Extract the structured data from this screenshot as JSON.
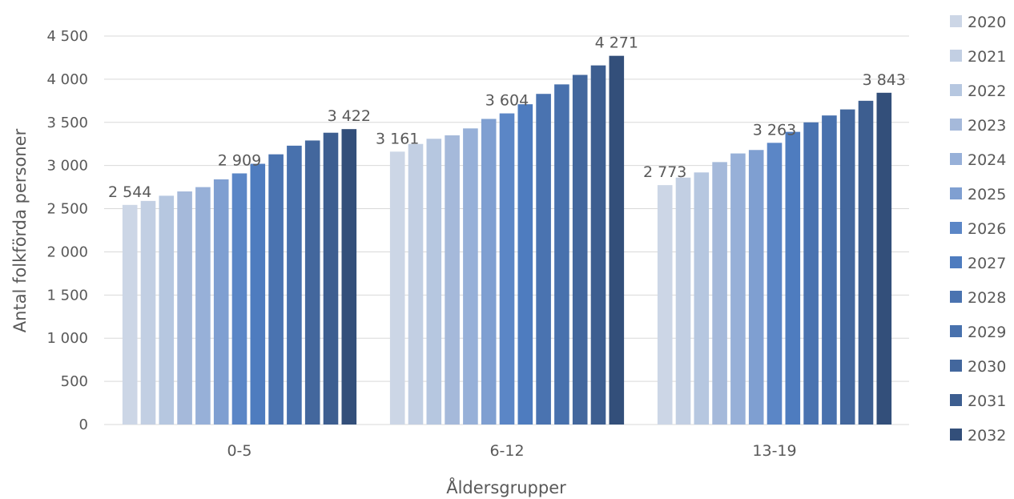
{
  "chart_data": {
    "type": "bar",
    "title": "",
    "xlabel": "Åldersgrupper",
    "ylabel": "Antal folkförda personer",
    "ylim": [
      0,
      4500
    ],
    "y_tick_step": 500,
    "y_tick_labels": [
      "0",
      "500",
      "1 000",
      "1 500",
      "2 000",
      "2 500",
      "3 000",
      "3 500",
      "4 000",
      "4 500"
    ],
    "grid": true,
    "legend_position": "right",
    "categories": [
      "0-5",
      "6-12",
      "13-19"
    ],
    "series": [
      {
        "name": "2020",
        "color": "#ccd6e6",
        "values": [
          2544,
          3161,
          2773
        ]
      },
      {
        "name": "2021",
        "color": "#c2cfe3",
        "values": [
          2590,
          3250,
          2860
        ]
      },
      {
        "name": "2022",
        "color": "#b6c7e0",
        "values": [
          2650,
          3310,
          2920
        ]
      },
      {
        "name": "2023",
        "color": "#a5b9da",
        "values": [
          2700,
          3350,
          3040
        ]
      },
      {
        "name": "2024",
        "color": "#97b0d8",
        "values": [
          2750,
          3430,
          3140
        ]
      },
      {
        "name": "2025",
        "color": "#7f9fd1",
        "values": [
          2840,
          3540,
          3180
        ]
      },
      {
        "name": "2026",
        "color": "#5b86c6",
        "values": [
          2909,
          3604,
          3263
        ]
      },
      {
        "name": "2027",
        "color": "#4e7cbf",
        "values": [
          3020,
          3710,
          3390
        ]
      },
      {
        "name": "2028",
        "color": "#4a73b0",
        "values": [
          3130,
          3830,
          3500
        ]
      },
      {
        "name": "2029",
        "color": "#4871ad",
        "values": [
          3230,
          3940,
          3580
        ]
      },
      {
        "name": "2030",
        "color": "#43679d",
        "values": [
          3290,
          4050,
          3650
        ]
      },
      {
        "name": "2031",
        "color": "#3d5e90",
        "values": [
          3380,
          4160,
          3750
        ]
      },
      {
        "name": "2032",
        "color": "#334f7a",
        "values": [
          3422,
          4271,
          3843
        ]
      }
    ],
    "data_labels": [
      {
        "category": "0-5",
        "series": "2020",
        "text": "2 544"
      },
      {
        "category": "0-5",
        "series": "2026",
        "text": "2 909"
      },
      {
        "category": "0-5",
        "series": "2032",
        "text": "3 422"
      },
      {
        "category": "6-12",
        "series": "2020",
        "text": "3 161"
      },
      {
        "category": "6-12",
        "series": "2026",
        "text": "3 604"
      },
      {
        "category": "6-12",
        "series": "2032",
        "text": "4 271"
      },
      {
        "category": "13-19",
        "series": "2020",
        "text": "2 773"
      },
      {
        "category": "13-19",
        "series": "2026",
        "text": "3 263"
      },
      {
        "category": "13-19",
        "series": "2032",
        "text": "3 843"
      }
    ],
    "gridline_color": "#d9d9d9"
  }
}
